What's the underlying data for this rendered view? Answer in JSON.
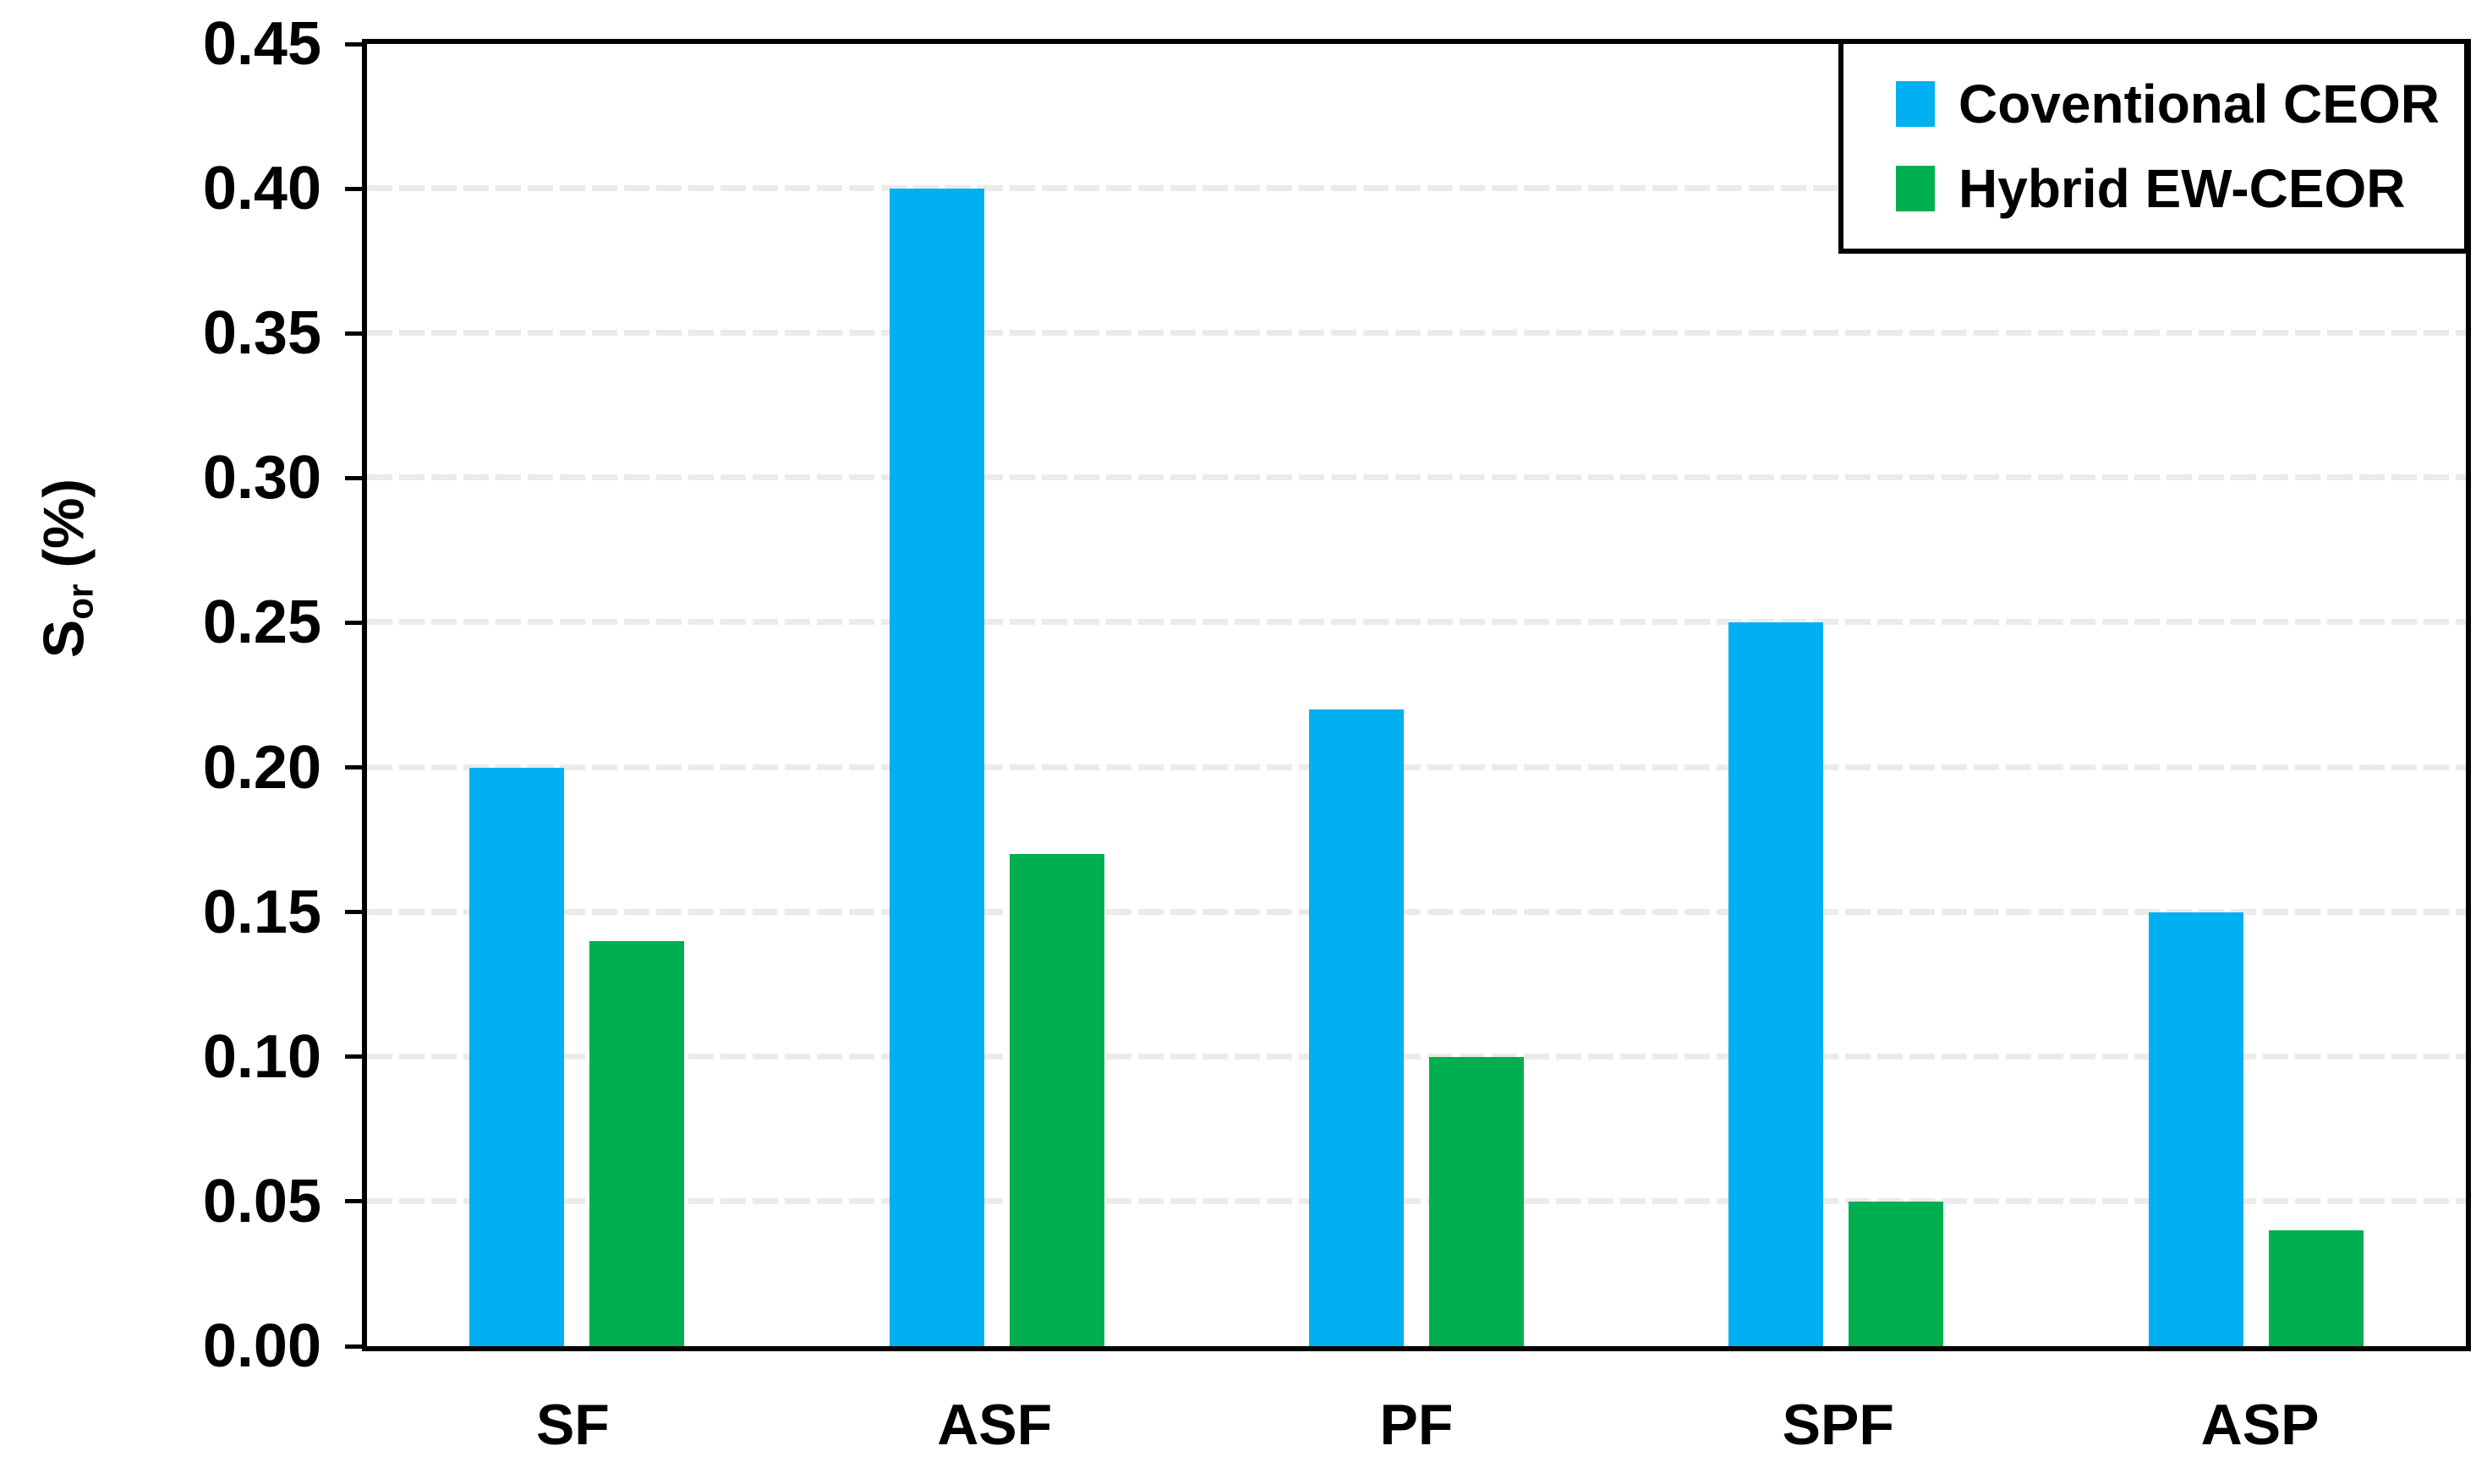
{
  "figure": {
    "background": "#ffffff",
    "axis_color": "#000000",
    "gridline_color": "#ebebeb"
  },
  "y_axis": {
    "label_main": "S",
    "label_subscript": "or",
    "label_unit": "(%)",
    "ticks": [
      "0.45",
      "0.40",
      "0.35",
      "0.30",
      "0.25",
      "0.20",
      "0.15",
      "0.10",
      "0.05",
      "0.00"
    ],
    "min": 0,
    "max": 0.45,
    "step": 0.05
  },
  "x_axis": {
    "categories": [
      "SF",
      "ASF",
      "PF",
      "SPF",
      "ASP"
    ]
  },
  "legend": {
    "position": "top-right-inside",
    "items": [
      {
        "label": "Coventional CEOR",
        "color": "#00B0F0"
      },
      {
        "label": "Hybrid EW-CEOR",
        "color": "#00B050"
      }
    ]
  },
  "chart_data": {
    "type": "bar",
    "categories": [
      "SF",
      "ASF",
      "PF",
      "SPF",
      "ASP"
    ],
    "series": [
      {
        "name": "Coventional CEOR",
        "color": "#00B0F0",
        "values": [
          0.2,
          0.4,
          0.22,
          0.25,
          0.15
        ]
      },
      {
        "name": "Hybrid EW-CEOR",
        "color": "#00B050",
        "values": [
          0.14,
          0.17,
          0.1,
          0.05,
          0.04
        ]
      }
    ],
    "title": "",
    "xlabel": "",
    "ylabel": "Sor (%)",
    "ylim": [
      0,
      0.45
    ],
    "ytick_step": 0.05,
    "grid": "horizontal-dashed-light",
    "legend_position": "top-right-inside"
  }
}
